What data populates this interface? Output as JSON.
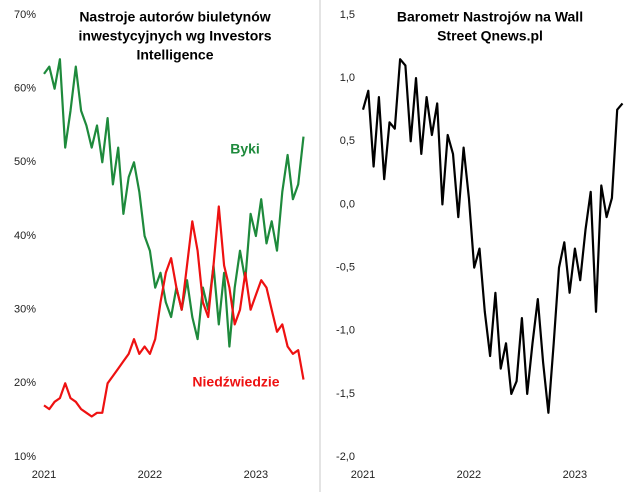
{
  "chart_data": [
    {
      "type": "line",
      "title": [
        "Nastroje autorów biuletynów",
        "inwestycyjnych wg Investors",
        "Intelligence"
      ],
      "x": [
        2021.0,
        2021.05,
        2021.1,
        2021.15,
        2021.2,
        2021.25,
        2021.3,
        2021.35,
        2021.4,
        2021.45,
        2021.5,
        2021.55,
        2021.6,
        2021.65,
        2021.7,
        2021.75,
        2021.8,
        2021.85,
        2021.9,
        2021.95,
        2022.0,
        2022.05,
        2022.1,
        2022.15,
        2022.2,
        2022.25,
        2022.3,
        2022.35,
        2022.4,
        2022.45,
        2022.5,
        2022.55,
        2022.6,
        2022.65,
        2022.7,
        2022.75,
        2022.8,
        2022.85,
        2022.9,
        2022.95,
        2023.0,
        2023.05,
        2023.1,
        2023.15,
        2023.2,
        2023.25,
        2023.3,
        2023.35,
        2023.4,
        2023.45
      ],
      "series": [
        {
          "name": "Byki",
          "color": "#1e8a3c",
          "values": [
            62,
            63,
            60,
            64,
            52,
            57,
            63,
            57,
            55,
            52,
            55,
            50,
            56,
            47,
            52,
            43,
            48,
            50,
            46,
            40,
            38,
            33,
            35,
            31,
            29,
            33,
            30,
            34,
            29,
            26,
            33,
            30,
            36,
            28,
            35,
            25,
            33,
            38,
            34,
            43,
            40,
            45,
            39,
            42,
            38,
            46,
            51,
            45,
            47,
            53.5
          ]
        },
        {
          "name": "Niedźwiedzie",
          "color": "#ee1111",
          "values": [
            17,
            16.5,
            17.5,
            18,
            20,
            18,
            17.5,
            16.5,
            16,
            15.5,
            16,
            16,
            20,
            21,
            22,
            23,
            24,
            26,
            24,
            25,
            24,
            26,
            31,
            35,
            37,
            33,
            30,
            36,
            42,
            38,
            31,
            29,
            36,
            44,
            36,
            33,
            28,
            30,
            35,
            30,
            32,
            34,
            33,
            30,
            27,
            28,
            25,
            24,
            24.5,
            20.5
          ]
        }
      ],
      "xlim": [
        2021,
        2023.53
      ],
      "xticks": [
        2021,
        2022,
        2023
      ],
      "ylim": [
        10,
        70
      ],
      "yticks": [
        {
          "value": 10,
          "label": "10%"
        },
        {
          "value": 20,
          "label": "20%"
        },
        {
          "value": 30,
          "label": "30%"
        },
        {
          "value": 40,
          "label": "40%"
        },
        {
          "value": 50,
          "label": "50%"
        },
        {
          "value": 60,
          "label": "60%"
        },
        {
          "value": 70,
          "label": "70%"
        }
      ]
    },
    {
      "type": "line",
      "title": [
        "Barometr Nastrojów  na Wall",
        "Street Qnews.pl"
      ],
      "x": [
        2021.0,
        2021.05,
        2021.1,
        2021.15,
        2021.2,
        2021.25,
        2021.3,
        2021.35,
        2021.4,
        2021.45,
        2021.5,
        2021.55,
        2021.6,
        2021.65,
        2021.7,
        2021.75,
        2021.8,
        2021.85,
        2021.9,
        2021.95,
        2022.0,
        2022.05,
        2022.1,
        2022.15,
        2022.2,
        2022.25,
        2022.3,
        2022.35,
        2022.4,
        2022.45,
        2022.5,
        2022.55,
        2022.6,
        2022.65,
        2022.7,
        2022.75,
        2022.8,
        2022.85,
        2022.9,
        2022.95,
        2023.0,
        2023.05,
        2023.1,
        2023.15,
        2023.2,
        2023.25,
        2023.3,
        2023.35,
        2023.4,
        2023.45
      ],
      "series": [
        {
          "color": "#000000",
          "values": [
            0.75,
            0.9,
            0.3,
            0.85,
            0.2,
            0.65,
            0.6,
            1.15,
            1.1,
            0.5,
            1.0,
            0.4,
            0.85,
            0.55,
            0.8,
            0.0,
            0.55,
            0.4,
            -0.1,
            0.45,
            0.05,
            -0.5,
            -0.35,
            -0.85,
            -1.2,
            -0.7,
            -1.3,
            -1.1,
            -1.5,
            -1.4,
            -0.9,
            -1.5,
            -1.1,
            -0.75,
            -1.25,
            -1.65,
            -1.1,
            -0.5,
            -0.3,
            -0.7,
            -0.35,
            -0.6,
            -0.2,
            0.1,
            -0.85,
            0.15,
            -0.1,
            0.05,
            0.75,
            0.8
          ]
        }
      ],
      "xlim": [
        2021,
        2023.53
      ],
      "xticks": [
        2021,
        2022,
        2023
      ],
      "ylim": [
        -2,
        1.5
      ],
      "yticks": [
        {
          "value": -2,
          "label": "-2,0"
        },
        {
          "value": -1.5,
          "label": "-1,5"
        },
        {
          "value": -1,
          "label": "-1,0"
        },
        {
          "value": -0.5,
          "label": "-0,5"
        },
        {
          "value": 0,
          "label": "0,0"
        },
        {
          "value": 0.5,
          "label": "0,5"
        },
        {
          "value": 1,
          "label": "1,0"
        },
        {
          "value": 1.5,
          "label": "1,5"
        }
      ]
    }
  ]
}
